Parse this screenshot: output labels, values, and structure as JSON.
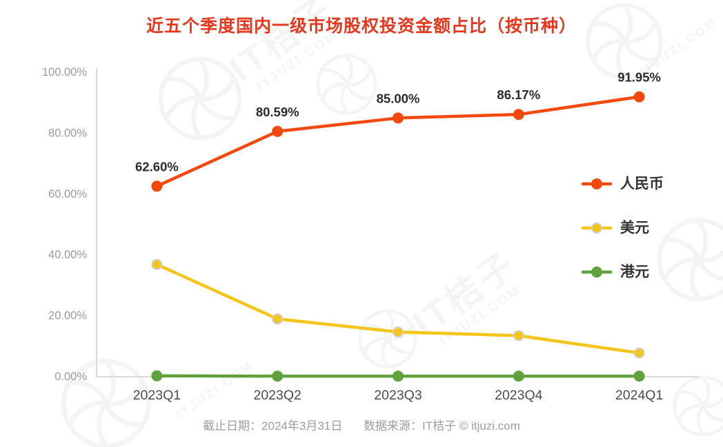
{
  "title": "近五个季度国内一级市场股权投资金额占比（按币种）",
  "footer": {
    "date": "截止日期：2024年3月31日",
    "source": "数据来源：IT桔子 © itjuzi.com"
  },
  "watermark": {
    "brand": "IT桔子",
    "domain": "ITJUZI.COM"
  },
  "chart_data": {
    "type": "line",
    "title": "近五个季度国内一级市场股权投资金额占比（按币种）",
    "categories": [
      "2023Q1",
      "2023Q2",
      "2023Q3",
      "2023Q4",
      "2024Q1"
    ],
    "series": [
      {
        "name": "人民币",
        "color": "#f4490e",
        "marker_border": "#f4490e",
        "values": [
          62.6,
          80.59,
          85.0,
          86.17,
          91.95
        ],
        "labels": [
          "62.60%",
          "80.59%",
          "85.00%",
          "86.17%",
          "91.95%"
        ]
      },
      {
        "name": "美元",
        "color": "#f6c51a",
        "marker_border": "#cfcfcf",
        "values": [
          36.9,
          19.0,
          14.7,
          13.5,
          7.8
        ]
      },
      {
        "name": "港元",
        "color": "#5fa23c",
        "marker_border": "#5fa23c",
        "values": [
          0.3,
          0.2,
          0.2,
          0.2,
          0.2
        ]
      }
    ],
    "ylim": [
      0,
      100
    ],
    "yticks": [
      {
        "value": 100,
        "label": "100.00%"
      },
      {
        "value": 80,
        "label": "80.00%"
      },
      {
        "value": 60,
        "label": "60.00%"
      },
      {
        "value": 40,
        "label": "40.00%"
      },
      {
        "value": 20,
        "label": "20.00%"
      },
      {
        "value": 0,
        "label": "0.00%"
      }
    ],
    "xlabel": "",
    "ylabel": "",
    "grid": false,
    "legend_position": "right"
  }
}
